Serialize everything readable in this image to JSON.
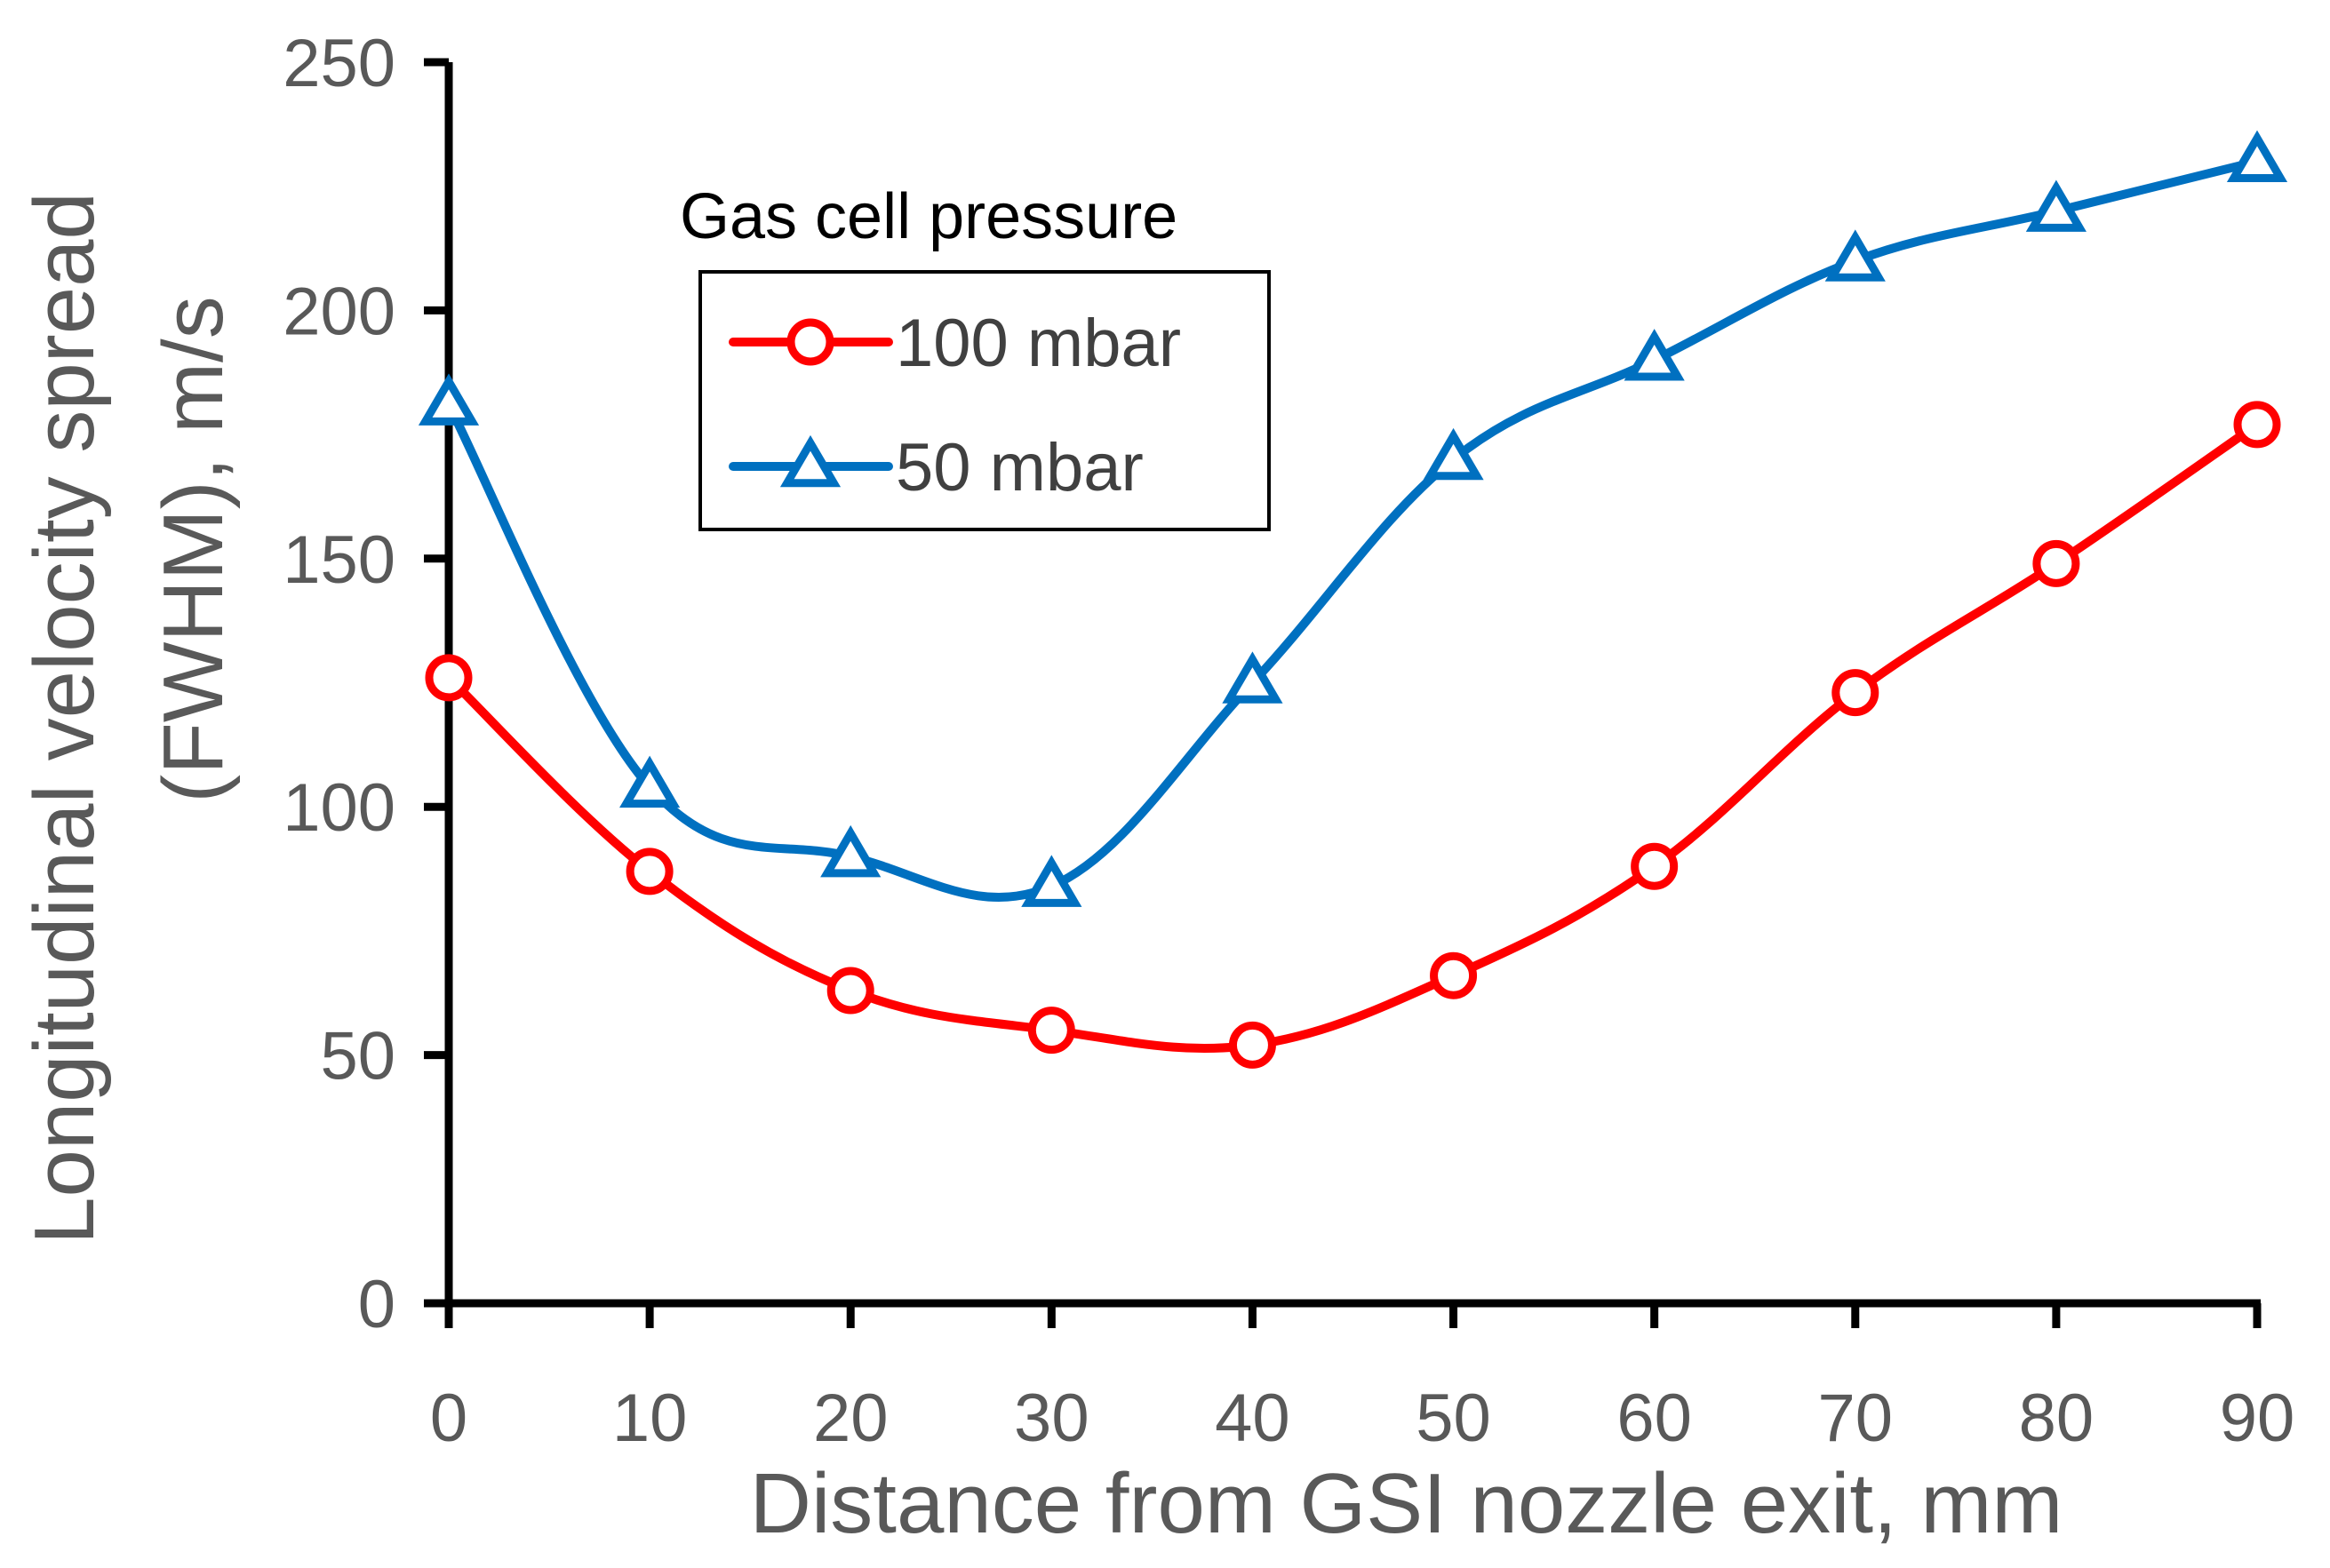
{
  "chart_data": {
    "type": "line",
    "title": "",
    "xlabel": "Distance from GSI nozzle exit, mm",
    "ylabel_line1": "Longitudinal velocity spread",
    "ylabel_line2": "(FWHM), m/s",
    "x": [
      0,
      10,
      20,
      30,
      40,
      50,
      60,
      70,
      80,
      90
    ],
    "xlim": [
      0,
      90
    ],
    "ylim": [
      0,
      250
    ],
    "xticks": [
      "0",
      "10",
      "20",
      "30",
      "40",
      "50",
      "60",
      "70",
      "80",
      "90"
    ],
    "yticks": [
      "0",
      "50",
      "100",
      "150",
      "200",
      "250"
    ],
    "grid": false,
    "legend": {
      "title": "Gas cell pressure",
      "placement": "top-left"
    },
    "series": [
      {
        "name": "100 mbar",
        "marker": "circle",
        "color": "#ff0000",
        "values": [
          126,
          87,
          63,
          55,
          52,
          66,
          88,
          123,
          149,
          177
        ]
      },
      {
        "name": "50 mbar",
        "marker": "triangle",
        "color": "#0070c0",
        "values": [
          181,
          104,
          90,
          84,
          125,
          170,
          190,
          210,
          220,
          230
        ]
      }
    ]
  }
}
